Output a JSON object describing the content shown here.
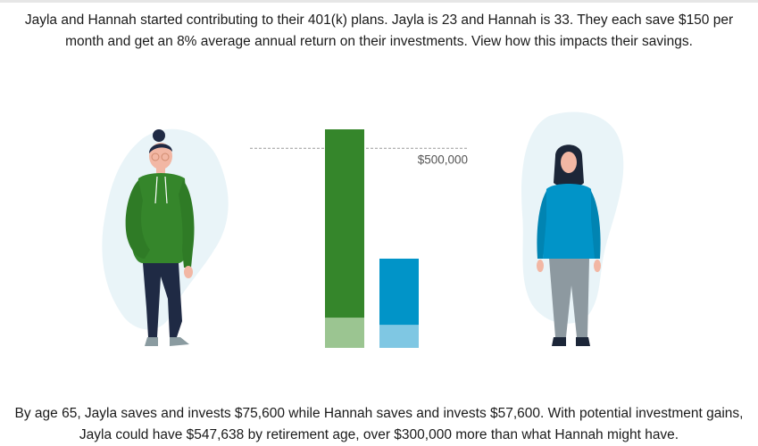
{
  "intro_text": "Jayla and Hannah started contributing to their 401(k) plans. Jayla is 23 and Hannah is 33. They each save $150 per month and get an 8% average annual return on their investments. View how this impacts their savings.",
  "summary_text": "By age 65, Jayla saves and invests $75,600 while Hannah saves and invests $57,600. With potential investment gains, Jayla could have $547,638 by retirement age, over $300,000 more than what Hannah might have.",
  "chart_data": {
    "type": "bar",
    "stacked": true,
    "categories": [
      "Jayla",
      "Hannah"
    ],
    "series": [
      {
        "values": [
          75600,
          57600
        ]
      },
      {
        "values": [
          472038,
          166000
        ]
      }
    ],
    "reference_line": {
      "value": 500000,
      "label": "$500,000"
    },
    "ylim": [
      0,
      547638
    ],
    "colors": {
      "Jayla": {
        "contributions": "#9bc591",
        "gains": "#35862b"
      },
      "Hannah": {
        "contributions": "#7fc7e3",
        "gains": "#0194c8"
      }
    }
  },
  "icons": {
    "jayla": "woman-green-hoodie-icon",
    "hannah": "woman-hijab-blue-sweater-icon"
  }
}
